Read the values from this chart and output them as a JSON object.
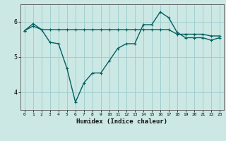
{
  "line1_x": [
    0,
    1,
    2,
    3,
    4,
    5,
    6,
    7,
    8,
    9,
    10,
    11,
    12,
    13,
    14,
    15,
    16,
    17,
    18,
    19,
    20,
    21,
    22,
    23
  ],
  "line1_y": [
    5.75,
    5.88,
    5.78,
    5.78,
    5.78,
    5.78,
    5.78,
    5.78,
    5.78,
    5.78,
    5.78,
    5.78,
    5.78,
    5.78,
    5.78,
    5.78,
    5.78,
    5.78,
    5.65,
    5.65,
    5.65,
    5.65,
    5.6,
    5.6
  ],
  "line2_x": [
    0,
    1,
    2,
    3,
    4,
    5,
    6,
    7,
    8,
    9,
    10,
    11,
    12,
    13,
    14,
    15,
    16,
    17,
    18,
    19,
    20,
    21,
    22,
    23
  ],
  "line2_y": [
    5.75,
    5.95,
    5.78,
    5.42,
    5.38,
    4.68,
    3.72,
    4.27,
    4.55,
    4.55,
    4.9,
    5.25,
    5.38,
    5.38,
    5.92,
    5.92,
    6.28,
    6.12,
    5.7,
    5.55,
    5.55,
    5.55,
    5.48,
    5.55
  ],
  "bg_color": "#cce8e4",
  "line_color": "#006060",
  "grid_color": "#99cccc",
  "xlabel": "Humidex (Indice chaleur)",
  "ylim": [
    3.5,
    6.5
  ],
  "xlim": [
    -0.5,
    23.5
  ],
  "yticks": [
    4,
    5,
    6
  ],
  "xticks": [
    0,
    1,
    2,
    3,
    4,
    5,
    6,
    7,
    8,
    9,
    10,
    11,
    12,
    13,
    14,
    15,
    16,
    17,
    18,
    19,
    20,
    21,
    22,
    23
  ],
  "marker": "+",
  "markersize": 3,
  "linewidth": 1.0
}
